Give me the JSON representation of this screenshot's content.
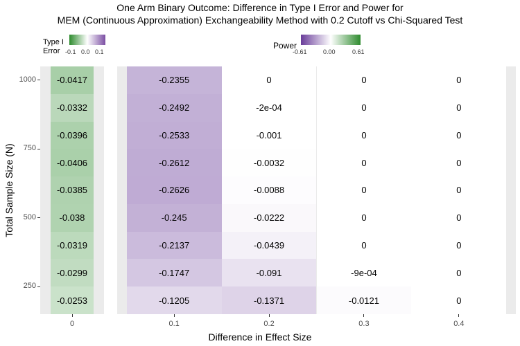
{
  "chart_data": {
    "type": "heatmap",
    "title": "One Arm Binary Outcome: Difference in Type I Error and Power for",
    "subtitle": "MEM (Continuous Approximation) Exchangeability Method with 0.2 Cutoff vs Chi-Squared Test",
    "xlabel": "Difference in Effect Size",
    "ylabel": "Total Sample Size (N)",
    "y_ticks": [
      "1000-",
      "750-",
      "500-",
      "250-"
    ],
    "y_values": [
      1000,
      900,
      800,
      700,
      600,
      500,
      400,
      300,
      200
    ],
    "ylim": [
      150,
      1050
    ],
    "panels": [
      {
        "name": "type1",
        "x_categories": [
          "0"
        ],
        "values": [
          [
            -0.0417
          ],
          [
            -0.0332
          ],
          [
            -0.0396
          ],
          [
            -0.0406
          ],
          [
            -0.0385
          ],
          [
            -0.038
          ],
          [
            -0.0319
          ],
          [
            -0.0299
          ],
          [
            -0.0253
          ]
        ],
        "labels": [
          [
            "-0.0417"
          ],
          [
            "-0.0332"
          ],
          [
            "-0.0396"
          ],
          [
            "-0.0406"
          ],
          [
            "-0.0385"
          ],
          [
            "-0.038"
          ],
          [
            "-0.0319"
          ],
          [
            "-0.0299"
          ],
          [
            "-0.0253"
          ]
        ]
      },
      {
        "name": "power",
        "x_categories": [
          "0.1",
          "0.2",
          "0.3",
          "0.4"
        ],
        "values": [
          [
            -0.2355,
            0,
            0,
            0
          ],
          [
            -0.2492,
            -0.0002,
            0,
            0
          ],
          [
            -0.2533,
            -0.001,
            0,
            0
          ],
          [
            -0.2612,
            -0.0032,
            0,
            0
          ],
          [
            -0.2626,
            -0.0088,
            0,
            0
          ],
          [
            -0.245,
            -0.0222,
            0,
            0
          ],
          [
            -0.2137,
            -0.0439,
            0,
            0
          ],
          [
            -0.1747,
            -0.091,
            -0.0009,
            0
          ],
          [
            -0.1205,
            -0.1371,
            -0.0121,
            0
          ]
        ],
        "labels": [
          [
            "-0.2355",
            "0",
            "0",
            "0"
          ],
          [
            "-0.2492",
            "-2e-04",
            "0",
            "0"
          ],
          [
            "-0.2533",
            "-0.001",
            "0",
            "0"
          ],
          [
            "-0.2612",
            "-0.0032",
            "0",
            "0"
          ],
          [
            "-0.2626",
            "-0.0088",
            "0",
            "0"
          ],
          [
            "-0.245",
            "-0.0222",
            "0",
            "0"
          ],
          [
            "-0.2137",
            "-0.0439",
            "0",
            "0"
          ],
          [
            "-0.1747",
            "-0.091",
            "-9e-04",
            "0"
          ],
          [
            "-0.1205",
            "-0.1371",
            "-0.0121",
            "0"
          ]
        ]
      }
    ],
    "legends": [
      {
        "title_line1": "Type I",
        "title_line2": "Error",
        "min": -0.1,
        "max": 0.1,
        "tick_labels": [
          "-0.1",
          "0.0",
          "0.1"
        ],
        "low_color": "#2e8b2e",
        "mid_color": "#ffffff",
        "high_color": "#7b4ea3"
      },
      {
        "title": "Power",
        "min": -0.61,
        "max": 0.61,
        "tick_labels": [
          "-0.61",
          "0.00",
          "0.61"
        ],
        "low_color": "#6a3d9a",
        "mid_color": "#ffffff",
        "high_color": "#2e8b2e"
      }
    ],
    "grid": true
  }
}
